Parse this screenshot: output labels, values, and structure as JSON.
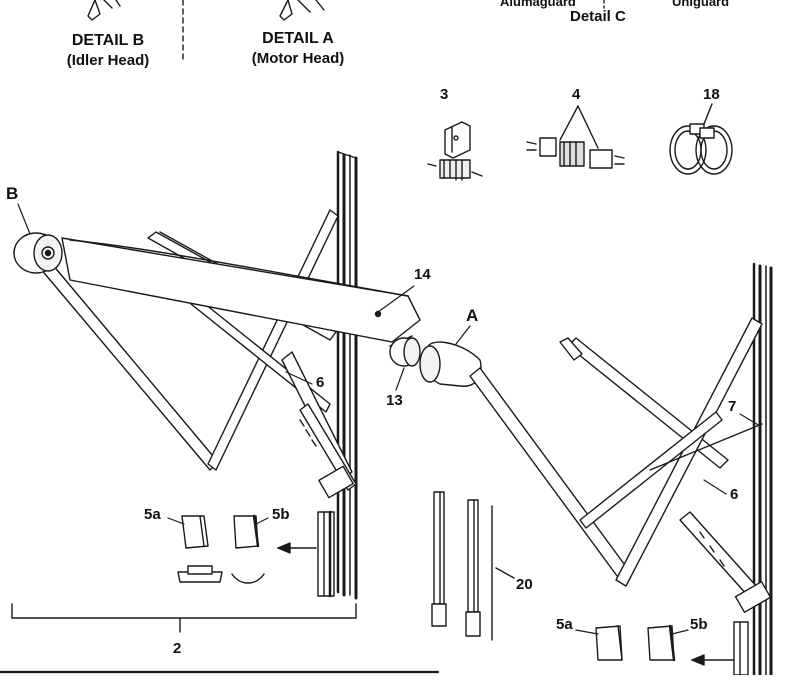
{
  "details": {
    "b_title": "DETAIL B",
    "b_sub": "(Idler Head)",
    "a_title": "DETAIL A",
    "a_sub": "(Motor Head)",
    "c_title": "Detail C",
    "c_left_label": "Alumaguard",
    "c_right_label": "Uniguard"
  },
  "callouts": {
    "part_3": "3",
    "part_4": "4",
    "part_18": "18",
    "head_b": "B",
    "head_a": "A",
    "part_14": "14",
    "part_13": "13",
    "part_6_left": "6",
    "part_6_right": "6",
    "part_7": "7",
    "part_5a_left": "5a",
    "part_5b_left": "5b",
    "part_5a_right": "5a",
    "part_5b_right": "5b",
    "part_20": "20",
    "part_2": "2"
  }
}
